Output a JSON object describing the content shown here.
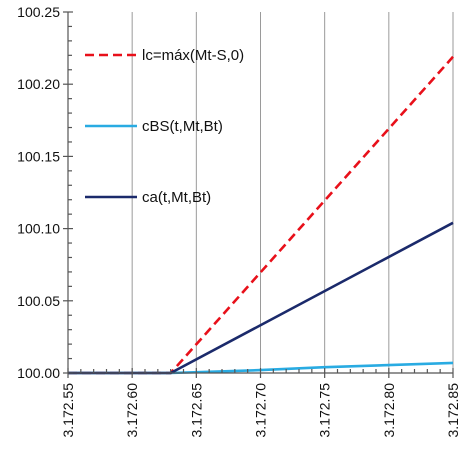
{
  "chart_data": {
    "type": "line",
    "title": "",
    "xlabel": "",
    "ylabel": "",
    "xlim": [
      3172.55,
      3172.85
    ],
    "ylim": [
      100.0,
      100.25
    ],
    "x_ticks": [
      3172.55,
      3172.6,
      3172.65,
      3172.7,
      3172.75,
      3172.8,
      3172.85
    ],
    "x_tick_labels": [
      "3.172.55",
      "3.172.60",
      "3.172.65",
      "3.172.70",
      "3.172.75",
      "3.172.80",
      "3.172.85"
    ],
    "y_ticks": [
      100.0,
      100.05,
      100.1,
      100.15,
      100.2,
      100.25
    ],
    "y_tick_labels": [
      "100.00",
      "100.05",
      "100.10",
      "100.15",
      "100.20",
      "100.25"
    ],
    "vertical_grid": true,
    "horizontal_grid": false,
    "legend_position": "top-left",
    "series": [
      {
        "name": "lc=máx(Mt-S,0)",
        "color": "#e8101a",
        "dash": "dashed",
        "points": [
          [
            3172.55,
            100.0
          ],
          [
            3172.63,
            100.0
          ],
          [
            3172.85,
            100.219
          ]
        ]
      },
      {
        "name": "cBS(t,Mt,Bt)",
        "color": "#29abe2",
        "dash": "solid",
        "points": [
          [
            3172.55,
            100.0
          ],
          [
            3172.63,
            100.0
          ],
          [
            3172.7,
            100.002
          ],
          [
            3172.75,
            100.004
          ],
          [
            3172.8,
            100.0055
          ],
          [
            3172.85,
            100.007
          ]
        ]
      },
      {
        "name": "ca(t,Mt,Bt)",
        "color": "#1b2a6b",
        "dash": "solid",
        "points": [
          [
            3172.55,
            100.0
          ],
          [
            3172.63,
            100.0
          ],
          [
            3172.85,
            100.104
          ]
        ]
      }
    ]
  }
}
